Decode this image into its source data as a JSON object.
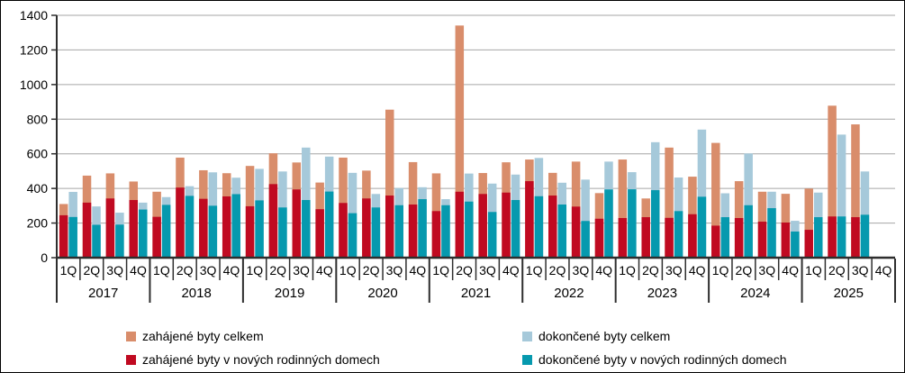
{
  "chart_data": {
    "type": "bar",
    "title": "",
    "xlabel": "",
    "ylabel": "",
    "ylim": [
      0,
      1400
    ],
    "y_tick_step": 200,
    "y_tick_labels": [
      "0",
      "200",
      "400",
      "600",
      "800",
      "1000",
      "1200",
      "1400"
    ],
    "grid": true,
    "legend_position": "bottom",
    "axis_color": "#2E2E2E",
    "gridline_color": "#A6A6A6",
    "series": [
      {
        "key": "started_total",
        "label": "zahájené byty celkem",
        "color": "#D98D6B"
      },
      {
        "key": "started_family",
        "label": "zahájené byty v nových rodinných domech",
        "color": "#C00A21"
      },
      {
        "key": "completed_total",
        "label": "dokončené byty celkem",
        "color": "#A6C9DA"
      },
      {
        "key": "completed_family",
        "label": "dokončené byty v nových rodinných domech",
        "color": "#0699AE"
      }
    ],
    "years": [
      {
        "year": "2017",
        "quarters": [
          {
            "q": "1Q",
            "started_total": 310,
            "started_family": 245,
            "completed_total": 380,
            "completed_family": 235
          },
          {
            "q": "2Q",
            "started_total": 474,
            "started_family": 318,
            "completed_total": 296,
            "completed_family": 190
          },
          {
            "q": "3Q",
            "started_total": 487,
            "started_family": 342,
            "completed_total": 260,
            "completed_family": 191
          },
          {
            "q": "4Q",
            "started_total": 440,
            "started_family": 333,
            "completed_total": 318,
            "completed_family": 278
          }
        ]
      },
      {
        "year": "2018",
        "quarters": [
          {
            "q": "1Q",
            "started_total": 381,
            "started_family": 236,
            "completed_total": 350,
            "completed_family": 305
          },
          {
            "q": "2Q",
            "started_total": 578,
            "started_family": 405,
            "completed_total": 413,
            "completed_family": 357
          },
          {
            "q": "3Q",
            "started_total": 505,
            "started_family": 340,
            "completed_total": 493,
            "completed_family": 300
          },
          {
            "q": "4Q",
            "started_total": 488,
            "started_family": 354,
            "completed_total": 462,
            "completed_family": 367
          }
        ]
      },
      {
        "year": "2019",
        "quarters": [
          {
            "q": "1Q",
            "started_total": 530,
            "started_family": 297,
            "completed_total": 513,
            "completed_family": 331
          },
          {
            "q": "2Q",
            "started_total": 603,
            "started_family": 425,
            "completed_total": 498,
            "completed_family": 290
          },
          {
            "q": "3Q",
            "started_total": 550,
            "started_family": 394,
            "completed_total": 636,
            "completed_family": 333
          },
          {
            "q": "4Q",
            "started_total": 434,
            "started_family": 280,
            "completed_total": 584,
            "completed_family": 382
          }
        ]
      },
      {
        "year": "2020",
        "quarters": [
          {
            "q": "1Q",
            "started_total": 578,
            "started_family": 316,
            "completed_total": 490,
            "completed_family": 257
          },
          {
            "q": "2Q",
            "started_total": 503,
            "started_family": 342,
            "completed_total": 368,
            "completed_family": 290
          },
          {
            "q": "3Q",
            "started_total": 855,
            "started_family": 359,
            "completed_total": 402,
            "completed_family": 303
          },
          {
            "q": "4Q",
            "started_total": 552,
            "started_family": 307,
            "completed_total": 407,
            "completed_family": 338
          }
        ]
      },
      {
        "year": "2021",
        "quarters": [
          {
            "q": "1Q",
            "started_total": 487,
            "started_family": 269,
            "completed_total": 338,
            "completed_family": 303
          },
          {
            "q": "2Q",
            "started_total": 1341,
            "started_family": 381,
            "completed_total": 486,
            "completed_family": 324
          },
          {
            "q": "3Q",
            "started_total": 489,
            "started_family": 368,
            "completed_total": 428,
            "completed_family": 264
          },
          {
            "q": "4Q",
            "started_total": 551,
            "started_family": 376,
            "completed_total": 480,
            "completed_family": 333
          }
        ]
      },
      {
        "year": "2022",
        "quarters": [
          {
            "q": "1Q",
            "started_total": 567,
            "started_family": 442,
            "completed_total": 576,
            "completed_family": 355
          },
          {
            "q": "2Q",
            "started_total": 490,
            "started_family": 359,
            "completed_total": 433,
            "completed_family": 307
          },
          {
            "q": "3Q",
            "started_total": 555,
            "started_family": 295,
            "completed_total": 451,
            "completed_family": 212
          },
          {
            "q": "4Q",
            "started_total": 373,
            "started_family": 225,
            "completed_total": 555,
            "completed_family": 394
          }
        ]
      },
      {
        "year": "2023",
        "quarters": [
          {
            "q": "1Q",
            "started_total": 567,
            "started_family": 229,
            "completed_total": 494,
            "completed_family": 395
          },
          {
            "q": "2Q",
            "started_total": 342,
            "started_family": 234,
            "completed_total": 667,
            "completed_family": 390
          },
          {
            "q": "3Q",
            "started_total": 636,
            "started_family": 230,
            "completed_total": 463,
            "completed_family": 269
          },
          {
            "q": "4Q",
            "started_total": 468,
            "started_family": 251,
            "completed_total": 740,
            "completed_family": 352
          }
        ]
      },
      {
        "year": "2024",
        "quarters": [
          {
            "q": "1Q",
            "started_total": 663,
            "started_family": 185,
            "completed_total": 372,
            "completed_family": 234
          },
          {
            "q": "2Q",
            "started_total": 442,
            "started_family": 229,
            "completed_total": 602,
            "completed_family": 303
          },
          {
            "q": "3Q",
            "started_total": 381,
            "started_family": 208,
            "completed_total": 381,
            "completed_family": 286
          },
          {
            "q": "4Q",
            "started_total": 369,
            "started_family": 203,
            "completed_total": 213,
            "completed_family": 151
          }
        ]
      },
      {
        "year": "2025",
        "quarters": [
          {
            "q": "1Q",
            "started_total": 399,
            "started_family": 161,
            "completed_total": 376,
            "completed_family": 234
          },
          {
            "q": "2Q",
            "started_total": 878,
            "started_family": 238,
            "completed_total": 711,
            "completed_family": 238
          },
          {
            "q": "3Q",
            "started_total": 770,
            "started_family": 234,
            "completed_total": 498,
            "completed_family": 248
          },
          {
            "q": "4Q",
            "started_total": null,
            "started_family": null,
            "completed_total": null,
            "completed_family": null
          }
        ]
      }
    ]
  }
}
